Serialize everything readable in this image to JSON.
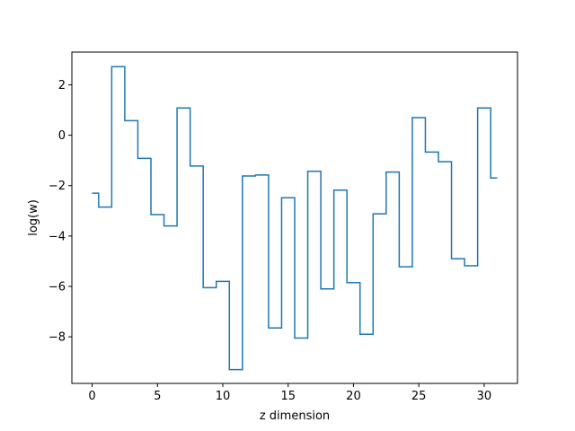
{
  "chart_data": {
    "type": "line",
    "step": "mid",
    "xlabel": "z dimension",
    "ylabel": "log(w)",
    "xlim": [
      -1.55,
      32.55
    ],
    "ylim": [
      -9.85,
      3.3
    ],
    "xticks": [
      0,
      5,
      10,
      15,
      20,
      25,
      30
    ],
    "yticks": [
      -8,
      -6,
      -4,
      -2,
      0,
      2
    ],
    "grid": false,
    "line_color": "#1f77b4",
    "series": [
      {
        "x": [
          0,
          1,
          2,
          3,
          4,
          5,
          6,
          7,
          8,
          9,
          10,
          11,
          12,
          13,
          14,
          15,
          16,
          17,
          18,
          19,
          20,
          21,
          22,
          23,
          24,
          25,
          26,
          27,
          28,
          29,
          30,
          31
        ],
        "values": [
          -2.3,
          -2.85,
          2.72,
          0.58,
          -0.92,
          -3.15,
          -3.6,
          1.08,
          -1.22,
          -6.05,
          -5.8,
          -9.3,
          -1.62,
          -1.58,
          -7.65,
          -2.48,
          -8.05,
          -1.43,
          -6.1,
          -2.18,
          -5.85,
          -7.9,
          -3.12,
          -1.46,
          -5.22,
          0.7,
          -0.67,
          -1.05,
          -4.9,
          -5.18,
          1.08,
          -1.7
        ]
      }
    ]
  }
}
